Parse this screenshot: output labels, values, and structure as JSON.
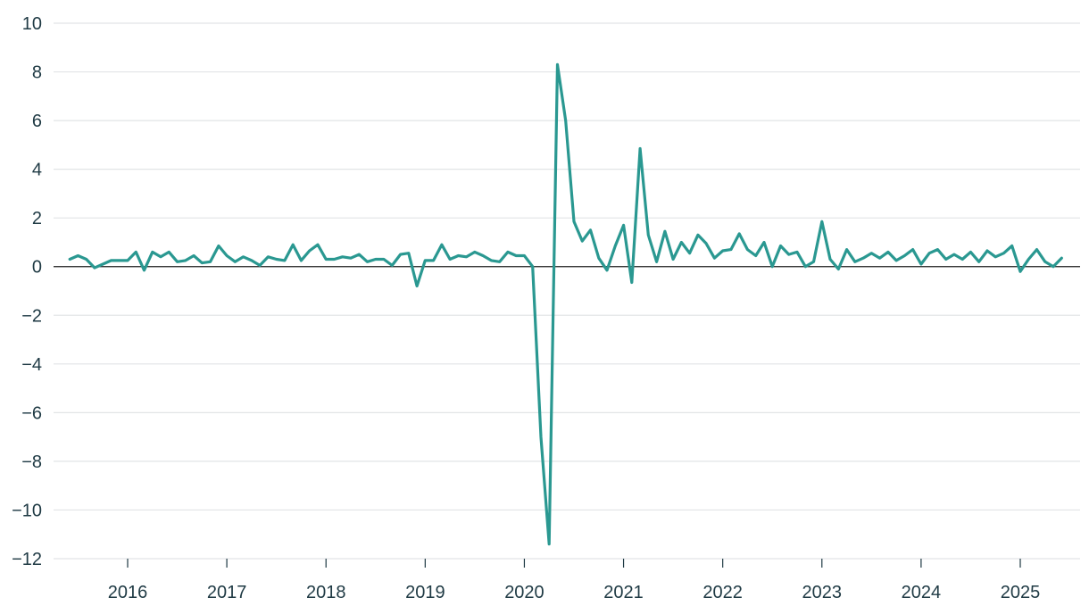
{
  "chart_data": {
    "type": "line",
    "title": "",
    "xlabel": "",
    "ylabel": "",
    "ylim": [
      -12,
      10
    ],
    "yticks": [
      10,
      8,
      6,
      4,
      2,
      0,
      -2,
      -4,
      -6,
      -8,
      -10,
      -12
    ],
    "ytick_labels": [
      "10",
      "8",
      "6",
      "4",
      "2",
      "0",
      "−2",
      "−4",
      "−6",
      "−8",
      "−10",
      "−12"
    ],
    "xticks": [
      "2016",
      "2017",
      "2018",
      "2019",
      "2020",
      "2021",
      "2022",
      "2023",
      "2024",
      "2025"
    ],
    "grid": "horizontal",
    "zero_line": true,
    "line_color": "#2a9891",
    "series": [
      {
        "x": [
          "2015-06",
          "2015-07",
          "2015-08",
          "2015-09",
          "2015-10",
          "2015-11",
          "2015-12",
          "2016-01",
          "2016-02",
          "2016-03",
          "2016-04",
          "2016-05",
          "2016-06",
          "2016-07",
          "2016-08",
          "2016-09",
          "2016-10",
          "2016-11",
          "2016-12",
          "2017-01",
          "2017-02",
          "2017-03",
          "2017-04",
          "2017-05",
          "2017-06",
          "2017-07",
          "2017-08",
          "2017-09",
          "2017-10",
          "2017-11",
          "2017-12",
          "2018-01",
          "2018-02",
          "2018-03",
          "2018-04",
          "2018-05",
          "2018-06",
          "2018-07",
          "2018-08",
          "2018-09",
          "2018-10",
          "2018-11",
          "2018-12",
          "2019-01",
          "2019-02",
          "2019-03",
          "2019-04",
          "2019-05",
          "2019-06",
          "2019-07",
          "2019-08",
          "2019-09",
          "2019-10",
          "2019-11",
          "2019-12",
          "2020-01",
          "2020-02",
          "2020-03",
          "2020-04",
          "2020-05",
          "2020-06",
          "2020-07",
          "2020-08",
          "2020-09",
          "2020-10",
          "2020-11",
          "2020-12",
          "2021-01",
          "2021-02",
          "2021-03",
          "2021-04",
          "2021-05",
          "2021-06",
          "2021-07",
          "2021-08",
          "2021-09",
          "2021-10",
          "2021-11",
          "2021-12",
          "2022-01",
          "2022-02",
          "2022-03",
          "2022-04",
          "2022-05",
          "2022-06",
          "2022-07",
          "2022-08",
          "2022-09",
          "2022-10",
          "2022-11",
          "2022-12",
          "2023-01",
          "2023-02",
          "2023-03",
          "2023-04",
          "2023-05",
          "2023-06",
          "2023-07",
          "2023-08",
          "2023-09",
          "2023-10",
          "2023-11",
          "2023-12",
          "2024-01",
          "2024-02",
          "2024-03",
          "2024-04",
          "2024-05",
          "2024-06",
          "2024-07",
          "2024-08",
          "2024-09",
          "2024-10",
          "2024-11",
          "2024-12",
          "2025-01",
          "2025-02",
          "2025-03",
          "2025-04",
          "2025-05",
          "2025-06"
        ],
        "values": [
          0.3,
          0.45,
          0.3,
          -0.05,
          0.1,
          0.25,
          0.25,
          0.25,
          0.6,
          -0.15,
          0.6,
          0.4,
          0.6,
          0.2,
          0.25,
          0.45,
          0.15,
          0.2,
          0.85,
          0.45,
          0.2,
          0.4,
          0.25,
          0.05,
          0.4,
          0.3,
          0.25,
          0.9,
          0.25,
          0.65,
          0.9,
          0.3,
          0.3,
          0.4,
          0.35,
          0.5,
          0.2,
          0.3,
          0.3,
          0.05,
          0.5,
          0.55,
          -0.8,
          0.25,
          0.25,
          0.9,
          0.3,
          0.45,
          0.4,
          0.6,
          0.45,
          0.25,
          0.2,
          0.6,
          0.45,
          0.45,
          0.0,
          -7.0,
          -11.4,
          8.3,
          6.0,
          1.85,
          1.05,
          1.5,
          0.35,
          -0.15,
          0.85,
          1.7,
          -0.65,
          4.85,
          1.3,
          0.2,
          1.45,
          0.3,
          1.0,
          0.55,
          1.3,
          0.95,
          0.35,
          0.65,
          0.7,
          1.35,
          0.7,
          0.45,
          1.0,
          0.0,
          0.85,
          0.5,
          0.6,
          0.0,
          0.2,
          1.85,
          0.3,
          -0.1,
          0.7,
          0.2,
          0.35,
          0.55,
          0.35,
          0.6,
          0.25,
          0.45,
          0.7,
          0.1,
          0.55,
          0.7,
          0.3,
          0.5,
          0.3,
          0.6,
          0.2,
          0.65,
          0.4,
          0.55,
          0.85,
          -0.2,
          0.3,
          0.7,
          0.2,
          0.0,
          0.35
        ]
      }
    ]
  }
}
